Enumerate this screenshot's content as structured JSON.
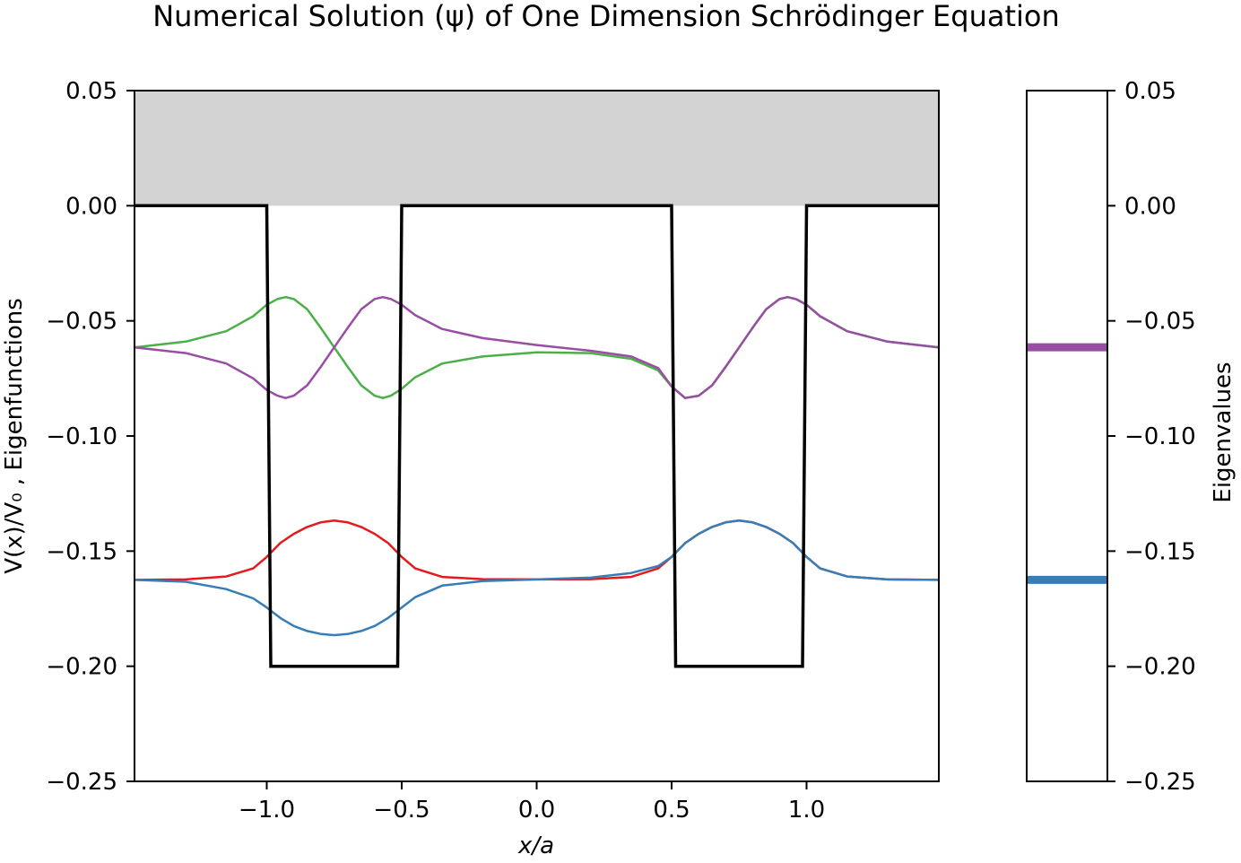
{
  "title": "Numerical Solution (ψ) of One Dimension Schrödinger Equation",
  "chart_data": [
    {
      "type": "line",
      "title": "Numerical Solution (ψ) of One Dimension Schrödinger Equation",
      "xlabel": "x/a",
      "ylabel": "V(x)/V₀ , Eigenfunctions",
      "xlim": [
        -1.49,
        1.49
      ],
      "ylim": [
        -0.25,
        0.05
      ],
      "x_ticks": [
        "−1.0",
        "−0.5",
        "0.0",
        "0.5",
        "1.0"
      ],
      "x_tick_values": [
        -1.0,
        -0.5,
        0.0,
        0.5,
        1.0
      ],
      "y_ticks": [
        "0.05",
        "0.00",
        "−0.05",
        "−0.10",
        "−0.15",
        "−0.20",
        "−0.25"
      ],
      "y_tick_values": [
        0.05,
        0.0,
        -0.05,
        -0.1,
        -0.15,
        -0.2,
        -0.25
      ],
      "grid": false,
      "shaded_region": {
        "y_from": 0.0,
        "y_to": 0.05,
        "color": "#d3d3d3"
      },
      "potential": {
        "color": "#000000",
        "x": [
          -1.49,
          -1.0,
          -0.985,
          -0.515,
          -0.5,
          0.5,
          0.515,
          0.985,
          1.0,
          1.49
        ],
        "y": [
          0.0,
          0.0,
          -0.2,
          -0.2,
          0.0,
          0.0,
          -0.2,
          -0.2,
          0.0,
          0.0
        ]
      },
      "series": [
        {
          "color": "#e41a1c",
          "x": [
            -1.49,
            -1.3,
            -1.15,
            -1.05,
            -1.0,
            -0.95,
            -0.9,
            -0.85,
            -0.8,
            -0.75,
            -0.7,
            -0.65,
            -0.6,
            -0.55,
            -0.5,
            -0.45,
            -0.35,
            -0.2,
            0.0,
            0.2,
            0.35,
            0.45,
            0.5,
            0.55,
            0.6,
            0.65,
            0.7,
            0.75,
            0.8,
            0.85,
            0.9,
            0.95,
            1.0,
            1.05,
            1.15,
            1.3,
            1.49
          ],
          "y": [
            -0.1625,
            -0.1623,
            -0.161,
            -0.1575,
            -0.1525,
            -0.1465,
            -0.1425,
            -0.1395,
            -0.1375,
            -0.1367,
            -0.1375,
            -0.1395,
            -0.1425,
            -0.1465,
            -0.1525,
            -0.1575,
            -0.1612,
            -0.1622,
            -0.1623,
            -0.1622,
            -0.1612,
            -0.1575,
            -0.1525,
            -0.1465,
            -0.1425,
            -0.1395,
            -0.1375,
            -0.1367,
            -0.1375,
            -0.1395,
            -0.1425,
            -0.1465,
            -0.1525,
            -0.1575,
            -0.161,
            -0.1623,
            -0.1625
          ]
        },
        {
          "color": "#377eb8",
          "x": [
            -1.49,
            -1.3,
            -1.15,
            -1.05,
            -1.0,
            -0.95,
            -0.9,
            -0.85,
            -0.8,
            -0.75,
            -0.7,
            -0.65,
            -0.6,
            -0.55,
            -0.5,
            -0.45,
            -0.35,
            -0.2,
            0.0,
            0.2,
            0.35,
            0.45,
            0.5,
            0.55,
            0.6,
            0.65,
            0.7,
            0.75,
            0.8,
            0.85,
            0.9,
            0.95,
            1.0,
            1.05,
            1.15,
            1.3,
            1.49
          ],
          "y": [
            -0.1625,
            -0.1633,
            -0.1665,
            -0.1705,
            -0.1745,
            -0.179,
            -0.1825,
            -0.1847,
            -0.186,
            -0.1865,
            -0.186,
            -0.1847,
            -0.1825,
            -0.179,
            -0.1745,
            -0.17,
            -0.165,
            -0.163,
            -0.1623,
            -0.1615,
            -0.1595,
            -0.1565,
            -0.1525,
            -0.1465,
            -0.1425,
            -0.1395,
            -0.1375,
            -0.1367,
            -0.1375,
            -0.1395,
            -0.1425,
            -0.1465,
            -0.1525,
            -0.1575,
            -0.161,
            -0.1623,
            -0.1625
          ]
        },
        {
          "color": "#4daf4a",
          "x": [
            -1.49,
            -1.3,
            -1.15,
            -1.05,
            -1.0,
            -0.96,
            -0.93,
            -0.9,
            -0.85,
            -0.8,
            -0.75,
            -0.7,
            -0.65,
            -0.6,
            -0.57,
            -0.54,
            -0.5,
            -0.45,
            -0.35,
            -0.2,
            0.0,
            0.2,
            0.35,
            0.45,
            0.5,
            0.55,
            0.6,
            0.65,
            0.7,
            0.75,
            0.8,
            0.85,
            0.9,
            0.93,
            0.96,
            1.0,
            1.05,
            1.15,
            1.3,
            1.49
          ],
          "y": [
            -0.0615,
            -0.059,
            -0.0545,
            -0.048,
            -0.043,
            -0.0405,
            -0.0397,
            -0.0405,
            -0.045,
            -0.053,
            -0.0615,
            -0.07,
            -0.078,
            -0.0825,
            -0.0835,
            -0.0825,
            -0.0795,
            -0.0745,
            -0.0685,
            -0.0655,
            -0.0637,
            -0.064,
            -0.0665,
            -0.0715,
            -0.0785,
            -0.0835,
            -0.0825,
            -0.078,
            -0.07,
            -0.0615,
            -0.053,
            -0.045,
            -0.0405,
            -0.0397,
            -0.0405,
            -0.043,
            -0.048,
            -0.0545,
            -0.059,
            -0.0615
          ]
        },
        {
          "color": "#984ea3",
          "x": [
            -1.49,
            -1.3,
            -1.15,
            -1.05,
            -1.0,
            -0.96,
            -0.93,
            -0.9,
            -0.85,
            -0.8,
            -0.75,
            -0.7,
            -0.65,
            -0.6,
            -0.57,
            -0.54,
            -0.5,
            -0.45,
            -0.35,
            -0.2,
            0.0,
            0.2,
            0.35,
            0.45,
            0.5,
            0.55,
            0.6,
            0.65,
            0.7,
            0.75,
            0.8,
            0.85,
            0.9,
            0.93,
            0.96,
            1.0,
            1.05,
            1.15,
            1.3,
            1.49
          ],
          "y": [
            -0.0615,
            -0.064,
            -0.0685,
            -0.075,
            -0.08,
            -0.0825,
            -0.0835,
            -0.0825,
            -0.078,
            -0.07,
            -0.0615,
            -0.053,
            -0.045,
            -0.0405,
            -0.0397,
            -0.0405,
            -0.043,
            -0.0475,
            -0.0535,
            -0.0575,
            -0.0605,
            -0.063,
            -0.0655,
            -0.0705,
            -0.0785,
            -0.0835,
            -0.0825,
            -0.078,
            -0.07,
            -0.0615,
            -0.053,
            -0.045,
            -0.0405,
            -0.0397,
            -0.0405,
            -0.043,
            -0.048,
            -0.0545,
            -0.059,
            -0.0615
          ]
        }
      ]
    },
    {
      "type": "bar",
      "ylabel": "Eigenvalues",
      "ylim": [
        -0.25,
        0.05
      ],
      "y_ticks": [
        "0.05",
        "0.00",
        "−0.05",
        "−0.10",
        "−0.15",
        "−0.20",
        "−0.25"
      ],
      "y_tick_values": [
        0.05,
        0.0,
        -0.05,
        -0.1,
        -0.15,
        -0.2,
        -0.25
      ],
      "axis_side": "right",
      "levels": [
        {
          "value": -0.0615,
          "color": "#984ea3"
        },
        {
          "value": -0.1625,
          "color": "#377eb8"
        }
      ]
    }
  ]
}
